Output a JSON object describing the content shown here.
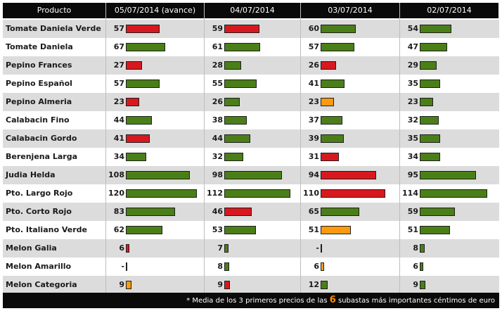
{
  "headers": [
    "Producto",
    "05/07/2014 (avance)",
    "04/07/2014",
    "03/07/2014",
    "02/07/2014"
  ],
  "colors": {
    "green": "#4a7f18",
    "red": "#d7191f",
    "orange": "#ff9a10"
  },
  "rows": [
    {
      "product": "Tomate Daniela Verde",
      "cells": [
        {
          "v": "57",
          "c": "red"
        },
        {
          "v": "59",
          "c": "red"
        },
        {
          "v": "60",
          "c": "green"
        },
        {
          "v": "54",
          "c": "green"
        }
      ]
    },
    {
      "product": "Tomate Daniela",
      "cells": [
        {
          "v": "67",
          "c": "green"
        },
        {
          "v": "61",
          "c": "green"
        },
        {
          "v": "57",
          "c": "green"
        },
        {
          "v": "47",
          "c": "green"
        }
      ]
    },
    {
      "product": "Pepino Frances",
      "cells": [
        {
          "v": "27",
          "c": "red"
        },
        {
          "v": "28",
          "c": "green"
        },
        {
          "v": "26",
          "c": "red"
        },
        {
          "v": "29",
          "c": "green"
        }
      ]
    },
    {
      "product": "Pepino Español",
      "cells": [
        {
          "v": "57",
          "c": "green"
        },
        {
          "v": "55",
          "c": "green"
        },
        {
          "v": "41",
          "c": "green"
        },
        {
          "v": "35",
          "c": "green"
        }
      ]
    },
    {
      "product": "Pepino Almeria",
      "cells": [
        {
          "v": "23",
          "c": "red"
        },
        {
          "v": "26",
          "c": "green"
        },
        {
          "v": "23",
          "c": "orange"
        },
        {
          "v": "23",
          "c": "green"
        }
      ]
    },
    {
      "product": "Calabacin Fino",
      "cells": [
        {
          "v": "44",
          "c": "green"
        },
        {
          "v": "38",
          "c": "green"
        },
        {
          "v": "37",
          "c": "green"
        },
        {
          "v": "32",
          "c": "green"
        }
      ]
    },
    {
      "product": "Calabacin Gordo",
      "cells": [
        {
          "v": "41",
          "c": "red"
        },
        {
          "v": "44",
          "c": "green"
        },
        {
          "v": "39",
          "c": "green"
        },
        {
          "v": "35",
          "c": "green"
        }
      ]
    },
    {
      "product": "Berenjena Larga",
      "cells": [
        {
          "v": "34",
          "c": "green"
        },
        {
          "v": "32",
          "c": "green"
        },
        {
          "v": "31",
          "c": "red"
        },
        {
          "v": "34",
          "c": "green"
        }
      ]
    },
    {
      "product": "Judia Helda",
      "cells": [
        {
          "v": "108",
          "c": "green"
        },
        {
          "v": "98",
          "c": "green"
        },
        {
          "v": "94",
          "c": "red"
        },
        {
          "v": "95",
          "c": "green"
        }
      ]
    },
    {
      "product": "Pto. Largo Rojo",
      "cells": [
        {
          "v": "120",
          "c": "green"
        },
        {
          "v": "112",
          "c": "green"
        },
        {
          "v": "110",
          "c": "red"
        },
        {
          "v": "114",
          "c": "green"
        }
      ]
    },
    {
      "product": "Pto. Corto Rojo",
      "cells": [
        {
          "v": "83",
          "c": "green"
        },
        {
          "v": "46",
          "c": "red"
        },
        {
          "v": "65",
          "c": "green"
        },
        {
          "v": "59",
          "c": "green"
        }
      ]
    },
    {
      "product": "Pto. Italiano Verde",
      "cells": [
        {
          "v": "62",
          "c": "green"
        },
        {
          "v": "53",
          "c": "green"
        },
        {
          "v": "51",
          "c": "orange"
        },
        {
          "v": "51",
          "c": "green"
        }
      ]
    },
    {
      "product": "Melon Galia",
      "cells": [
        {
          "v": "6",
          "c": "red"
        },
        {
          "v": "7",
          "c": "green"
        },
        {
          "v": "-",
          "c": "none"
        },
        {
          "v": "8",
          "c": "green"
        }
      ]
    },
    {
      "product": "Melon Amarillo",
      "cells": [
        {
          "v": "-",
          "c": "none"
        },
        {
          "v": "8",
          "c": "green"
        },
        {
          "v": "6",
          "c": "orange"
        },
        {
          "v": "6",
          "c": "green"
        }
      ]
    },
    {
      "product": "Melon Categoria",
      "cells": [
        {
          "v": "9",
          "c": "orange"
        },
        {
          "v": "9",
          "c": "red"
        },
        {
          "v": "12",
          "c": "green"
        },
        {
          "v": "9",
          "c": "green"
        }
      ]
    }
  ],
  "footer": {
    "star": "*",
    "text_before": " Media de los 3 primeros precios de las ",
    "highlight": "6",
    "text_after": " subastas más importantes céntimos de euro"
  }
}
